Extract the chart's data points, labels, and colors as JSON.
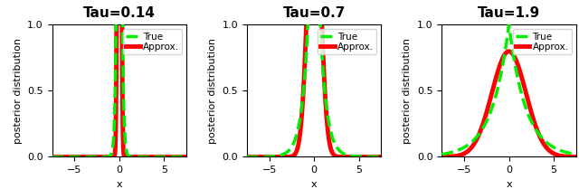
{
  "taus": [
    0.14,
    0.7,
    1.9
  ],
  "titles": [
    "Tau=0.14",
    "Tau=0.7",
    "Tau=1.9"
  ],
  "xlim": [
    -7.5,
    7.5
  ],
  "ylim": [
    0,
    1.0
  ],
  "yticks": [
    0,
    0.5,
    1
  ],
  "xtick_locs": [
    -5,
    0,
    5
  ],
  "xlabel": "x",
  "ylabel": "posterior distribution",
  "true_color": "#00EE00",
  "approx_color": "#FF0000",
  "true_label": "True",
  "approx_label": "Approx.",
  "true_linewidth": 2.5,
  "approx_linewidth": 3.5,
  "figsize": [
    6.4,
    2.09
  ],
  "dpi": 100,
  "title_fontsize": 11,
  "title_fontweight": "bold",
  "axis_fontsize": 8,
  "tick_fontsize": 8,
  "legend_fontsize": 7.5,
  "scale_factor": 1.9
}
